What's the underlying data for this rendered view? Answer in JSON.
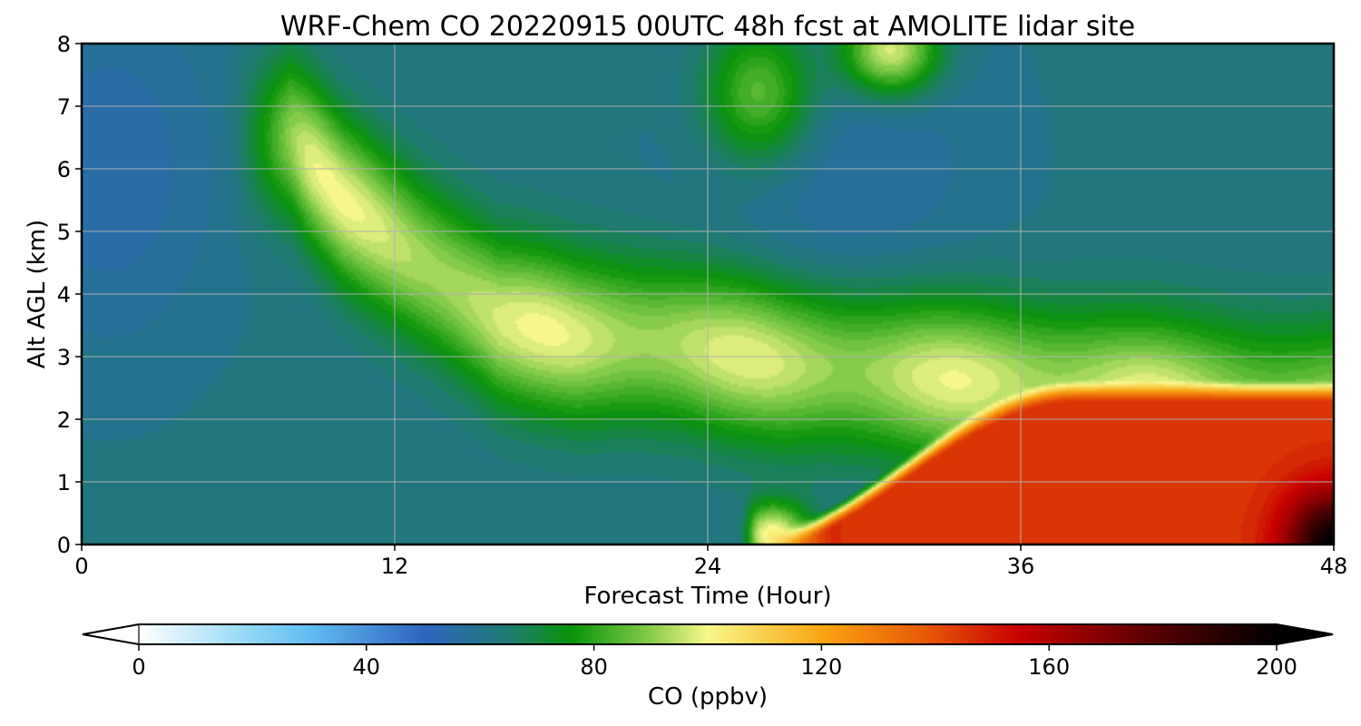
{
  "chart_data": {
    "type": "heatmap",
    "title": "WRF-Chem CO  20220915 00UTC 48h fcst at AMOLITE lidar site",
    "xlabel": "Forecast Time (Hour)",
    "ylabel": "Alt AGL (km)",
    "xlim": [
      0,
      48
    ],
    "ylim": [
      0,
      8
    ],
    "x_ticks": [
      "0",
      "12",
      "24",
      "36",
      "48"
    ],
    "y_ticks": [
      "0",
      "1",
      "2",
      "3",
      "4",
      "5",
      "6",
      "7",
      "8"
    ],
    "grid": true,
    "colorbar": {
      "label": "CO  (ppbv)",
      "range": [
        0,
        200
      ],
      "extend": "both",
      "ticks": [
        "0",
        "40",
        "80",
        "120",
        "160",
        "200"
      ],
      "stops": [
        {
          "value": 0,
          "color": "#ffffff"
        },
        {
          "value": 20,
          "color": "#8fd6f5"
        },
        {
          "value": 30,
          "color": "#62bdf2"
        },
        {
          "value": 50,
          "color": "#2e65c0"
        },
        {
          "value": 65,
          "color": "#1f7a72"
        },
        {
          "value": 76,
          "color": "#089408"
        },
        {
          "value": 90,
          "color": "#86cc4a"
        },
        {
          "value": 100,
          "color": "#f8f88a"
        },
        {
          "value": 120,
          "color": "#f8a512"
        },
        {
          "value": 138,
          "color": "#e85a08"
        },
        {
          "value": 155,
          "color": "#c80000"
        },
        {
          "value": 180,
          "color": "#500000"
        },
        {
          "value": 200,
          "color": "#000000"
        }
      ]
    },
    "background_ppbv": 62,
    "features": [
      {
        "name": "elevated plume",
        "peak_ppbv": 100,
        "path_hour": [
          8,
          10,
          13,
          16,
          19,
          23,
          27,
          32,
          37,
          42,
          47
        ],
        "path_alt_km": [
          6.5,
          5.5,
          4.5,
          3.6,
          3.3,
          3.2,
          2.9,
          2.7,
          2.5,
          2.3,
          2.2
        ]
      },
      {
        "name": "upper patch",
        "peak_ppbv": 88,
        "hour": 26,
        "alt_km": 7.2
      },
      {
        "name": "upper patch",
        "peak_ppbv": 100,
        "hour": 31,
        "alt_km": 7.9
      },
      {
        "name": "boundary layer pollution",
        "peak_ppbv": 145,
        "hour_range": [
          26,
          48
        ],
        "alt_km_range": [
          0,
          2.5
        ]
      },
      {
        "name": "surface maximum",
        "peak_ppbv": 200,
        "hour": 48,
        "alt_km": 0
      }
    ]
  }
}
